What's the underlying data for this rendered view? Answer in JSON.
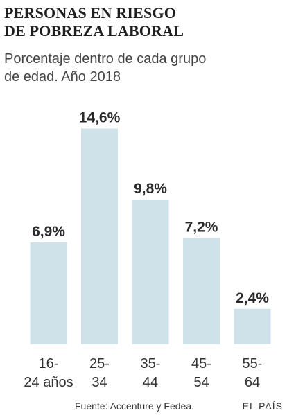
{
  "header": {
    "title_lines": [
      "PERSONAS EN RIESGO",
      "DE POBREZA LABORAL"
    ],
    "subtitle_lines": [
      "Porcentaje dentro de cada grupo",
      "de edad. Año 2018"
    ]
  },
  "footer": {
    "source": "Fuente: Accenture y Fedea.",
    "brand": "EL PAÍS"
  },
  "colors": {
    "bar": "#cfe2ea",
    "value_label": "#2a2a2a",
    "axis_label": "#333333"
  },
  "chart_data": {
    "type": "bar",
    "categories": [
      "16-24 años",
      "25-34",
      "35-44",
      "45-54",
      "55-64"
    ],
    "category_lines": [
      [
        "16-",
        "24 años"
      ],
      [
        "25-",
        "34"
      ],
      [
        "35-",
        "44"
      ],
      [
        "45-",
        "54"
      ],
      [
        "55-",
        "64"
      ]
    ],
    "values": [
      6.9,
      14.6,
      9.8,
      7.2,
      2.4
    ],
    "value_labels": [
      "6,9%",
      "14,6%",
      "9,8%",
      "7,2%",
      "2,4%"
    ],
    "title": "PERSONAS EN RIESGO DE POBREZA LABORAL",
    "subtitle": "Porcentaje dentro de cada grupo de edad. Año 2018",
    "xlabel": "",
    "ylabel": "",
    "ylim": [
      0,
      15
    ],
    "grid": false,
    "legend": "none"
  }
}
